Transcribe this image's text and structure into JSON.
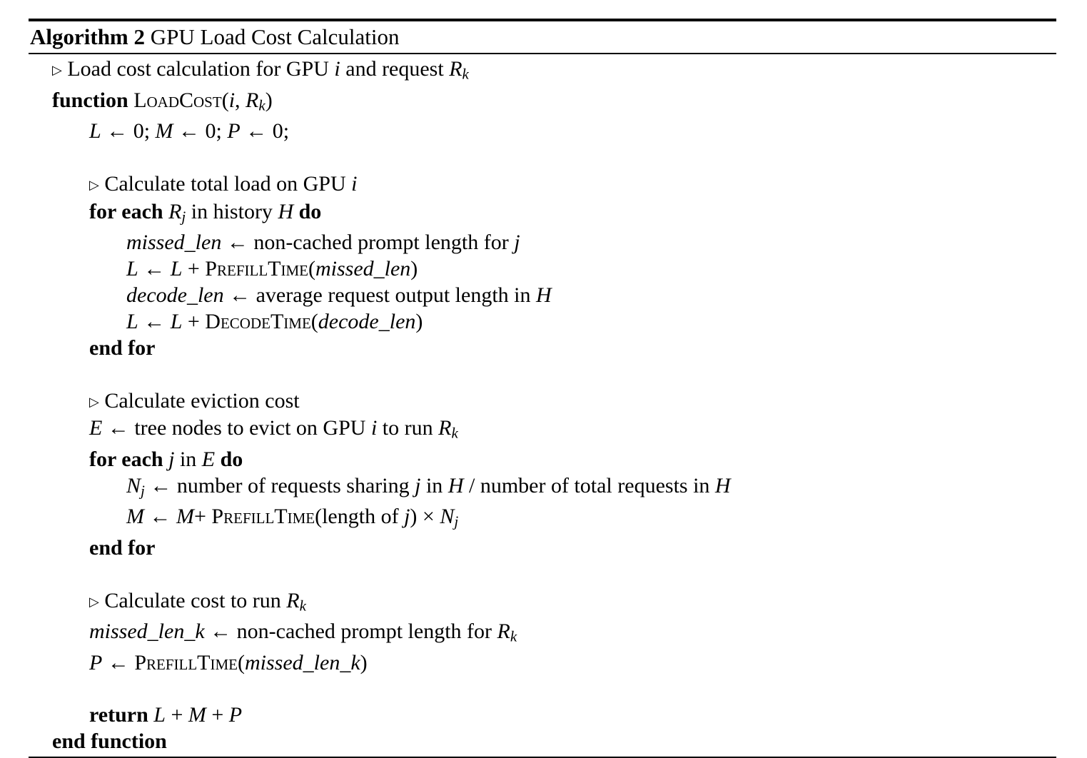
{
  "page": {
    "background_color": "#ffffff",
    "text_color": "#000000",
    "rule_color": "#000000"
  },
  "header": {
    "label": "Algorithm 2",
    "title": " GPU Load Cost Calculation"
  },
  "algorithm": {
    "comment_marker": "▷",
    "lines": [
      {
        "indent": 1,
        "segments": [
          {
            "style": "tri",
            "text": "▷"
          },
          {
            "style": "rm",
            "text": " Load cost calculation for GPU "
          },
          {
            "style": "it",
            "text": "i"
          },
          {
            "style": "rm",
            "text": " and request "
          },
          {
            "style": "it",
            "text": "R"
          },
          {
            "style": "sub",
            "text": "k"
          }
        ]
      },
      {
        "indent": 1,
        "segments": [
          {
            "style": "b",
            "text": "function "
          },
          {
            "style": "sc",
            "text": "LoadCost"
          },
          {
            "style": "rm",
            "text": "("
          },
          {
            "style": "it",
            "text": "i"
          },
          {
            "style": "rm",
            "text": ", "
          },
          {
            "style": "it",
            "text": "R"
          },
          {
            "style": "sub",
            "text": "k"
          },
          {
            "style": "rm",
            "text": ")"
          }
        ]
      },
      {
        "indent": 2,
        "segments": [
          {
            "style": "it",
            "text": "L"
          },
          {
            "style": "rm",
            "text": " ← 0; "
          },
          {
            "style": "it",
            "text": "M"
          },
          {
            "style": "rm",
            "text": " ← 0; "
          },
          {
            "style": "it",
            "text": "P"
          },
          {
            "style": "rm",
            "text": " ← 0;"
          }
        ]
      },
      {
        "indent": 0,
        "segments": []
      },
      {
        "indent": 2,
        "segments": [
          {
            "style": "tri",
            "text": "▷"
          },
          {
            "style": "rm",
            "text": " Calculate total load on GPU "
          },
          {
            "style": "it",
            "text": "i"
          }
        ]
      },
      {
        "indent": 2,
        "segments": [
          {
            "style": "b",
            "text": "for each "
          },
          {
            "style": "it",
            "text": "R"
          },
          {
            "style": "sub",
            "text": "j"
          },
          {
            "style": "rm",
            "text": " in history "
          },
          {
            "style": "it",
            "text": "H"
          },
          {
            "style": "b",
            "text": " do"
          }
        ]
      },
      {
        "indent": 3,
        "segments": [
          {
            "style": "it",
            "text": "missed_len"
          },
          {
            "style": "rm",
            "text": " ← non-cached prompt length for "
          },
          {
            "style": "it",
            "text": "j"
          }
        ]
      },
      {
        "indent": 3,
        "segments": [
          {
            "style": "it",
            "text": "L"
          },
          {
            "style": "rm",
            "text": " ← "
          },
          {
            "style": "it",
            "text": "L"
          },
          {
            "style": "rm",
            "text": " + "
          },
          {
            "style": "sc",
            "text": "PrefillTime"
          },
          {
            "style": "rm",
            "text": "("
          },
          {
            "style": "it",
            "text": "missed_len"
          },
          {
            "style": "rm",
            "text": ")"
          }
        ]
      },
      {
        "indent": 3,
        "segments": [
          {
            "style": "it",
            "text": "decode_len"
          },
          {
            "style": "rm",
            "text": " ← average request output length in "
          },
          {
            "style": "it",
            "text": "H"
          }
        ]
      },
      {
        "indent": 3,
        "segments": [
          {
            "style": "it",
            "text": "L"
          },
          {
            "style": "rm",
            "text": " ← "
          },
          {
            "style": "it",
            "text": "L"
          },
          {
            "style": "rm",
            "text": " + "
          },
          {
            "style": "sc",
            "text": "DecodeTime"
          },
          {
            "style": "rm",
            "text": "("
          },
          {
            "style": "it",
            "text": "decode_len"
          },
          {
            "style": "rm",
            "text": ")"
          }
        ]
      },
      {
        "indent": 2,
        "segments": [
          {
            "style": "b",
            "text": "end for"
          }
        ]
      },
      {
        "indent": 0,
        "segments": []
      },
      {
        "indent": 2,
        "segments": [
          {
            "style": "tri",
            "text": "▷"
          },
          {
            "style": "rm",
            "text": " Calculate eviction cost"
          }
        ]
      },
      {
        "indent": 2,
        "segments": [
          {
            "style": "it",
            "text": "E"
          },
          {
            "style": "rm",
            "text": " ← tree nodes to evict on GPU "
          },
          {
            "style": "it",
            "text": "i"
          },
          {
            "style": "rm",
            "text": " to run "
          },
          {
            "style": "it",
            "text": "R"
          },
          {
            "style": "sub",
            "text": "k"
          }
        ]
      },
      {
        "indent": 2,
        "segments": [
          {
            "style": "b",
            "text": "for each "
          },
          {
            "style": "it",
            "text": "j"
          },
          {
            "style": "rm",
            "text": " in "
          },
          {
            "style": "it",
            "text": "E"
          },
          {
            "style": "b",
            "text": " do"
          }
        ]
      },
      {
        "indent": 3,
        "segments": [
          {
            "style": "it",
            "text": "N"
          },
          {
            "style": "sub",
            "text": "j"
          },
          {
            "style": "rm",
            "text": " ← number of requests sharing "
          },
          {
            "style": "it",
            "text": "j"
          },
          {
            "style": "rm",
            "text": " in "
          },
          {
            "style": "it",
            "text": "H"
          },
          {
            "style": "rm",
            "text": " / number of total requests in "
          },
          {
            "style": "it",
            "text": "H"
          }
        ]
      },
      {
        "indent": 3,
        "segments": [
          {
            "style": "it",
            "text": "M"
          },
          {
            "style": "rm",
            "text": " ← "
          },
          {
            "style": "it",
            "text": "M"
          },
          {
            "style": "rm",
            "text": "+ "
          },
          {
            "style": "sc",
            "text": "PrefillTime"
          },
          {
            "style": "rm",
            "text": "(length of "
          },
          {
            "style": "it",
            "text": "j"
          },
          {
            "style": "rm",
            "text": ") × "
          },
          {
            "style": "it",
            "text": "N"
          },
          {
            "style": "sub",
            "text": "j"
          }
        ]
      },
      {
        "indent": 2,
        "segments": [
          {
            "style": "b",
            "text": "end for"
          }
        ]
      },
      {
        "indent": 0,
        "segments": []
      },
      {
        "indent": 2,
        "segments": [
          {
            "style": "tri",
            "text": "▷"
          },
          {
            "style": "rm",
            "text": " Calculate cost to run "
          },
          {
            "style": "it",
            "text": "R"
          },
          {
            "style": "sub",
            "text": "k"
          }
        ]
      },
      {
        "indent": 2,
        "segments": [
          {
            "style": "it",
            "text": "missed_len_k"
          },
          {
            "style": "rm",
            "text": " ← non-cached prompt length for "
          },
          {
            "style": "it",
            "text": "R"
          },
          {
            "style": "sub",
            "text": "k"
          }
        ]
      },
      {
        "indent": 2,
        "segments": [
          {
            "style": "it",
            "text": "P"
          },
          {
            "style": "rm",
            "text": " ← "
          },
          {
            "style": "sc",
            "text": "PrefillTime"
          },
          {
            "style": "rm",
            "text": "("
          },
          {
            "style": "it",
            "text": "missed_len_k"
          },
          {
            "style": "rm",
            "text": ")"
          }
        ]
      },
      {
        "indent": 0,
        "segments": []
      },
      {
        "indent": 2,
        "segments": [
          {
            "style": "b",
            "text": "return "
          },
          {
            "style": "it",
            "text": "L"
          },
          {
            "style": "rm",
            "text": " + "
          },
          {
            "style": "it",
            "text": "M"
          },
          {
            "style": "rm",
            "text": " + "
          },
          {
            "style": "it",
            "text": "P"
          }
        ]
      },
      {
        "indent": 1,
        "segments": [
          {
            "style": "b",
            "text": "end function"
          }
        ]
      }
    ]
  }
}
